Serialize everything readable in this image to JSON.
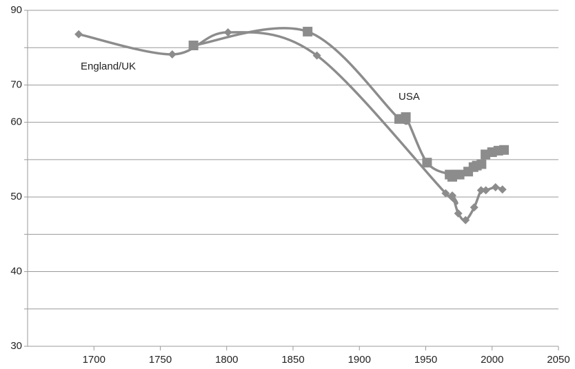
{
  "chart_data": {
    "type": "line",
    "series": [
      {
        "name": "England/UK",
        "color": "#8c8c8c",
        "marker": "diamond",
        "x": [
          1688.5,
          1759,
          1801,
          1868,
          1965,
          1970,
          1974.5,
          1980,
          1986.5,
          1991.7,
          1995.3,
          2002.6,
          2007.8
        ],
        "values": [
          83.6,
          78.2,
          84.1,
          77.9,
          50.5,
          50.2,
          47.8,
          46.9,
          48.6,
          50.9,
          50.9,
          51.3,
          51.0
        ]
      },
      {
        "name": "USA",
        "color": "#8c8c8c",
        "marker": "square",
        "x": [
          1775,
          1861,
          1930,
          1935,
          1951,
          1968,
          1970,
          1973,
          1975.5,
          1982,
          1986,
          1988.5,
          1992,
          1995,
          2000,
          2004.7,
          2009
        ],
        "values": [
          80.6,
          84.3,
          60.9,
          61.4,
          54.6,
          53.0,
          52.7,
          53.0,
          53.0,
          53.4,
          54.0,
          54.2,
          54.4,
          55.7,
          56.0,
          56.2,
          56.3
        ]
      }
    ],
    "xlim": [
      1650,
      2050
    ],
    "xticks": [
      1700,
      1750,
      1800,
      1850,
      1900,
      1950,
      2000,
      2050
    ],
    "ylim": [
      30,
      90
    ],
    "yticks": [
      30,
      40,
      50,
      60,
      70,
      90
    ],
    "ygrid": [
      30,
      35,
      40,
      45,
      50,
      55,
      60,
      70,
      80,
      90
    ],
    "yscale": "gridline-spaced",
    "grid": true
  }
}
